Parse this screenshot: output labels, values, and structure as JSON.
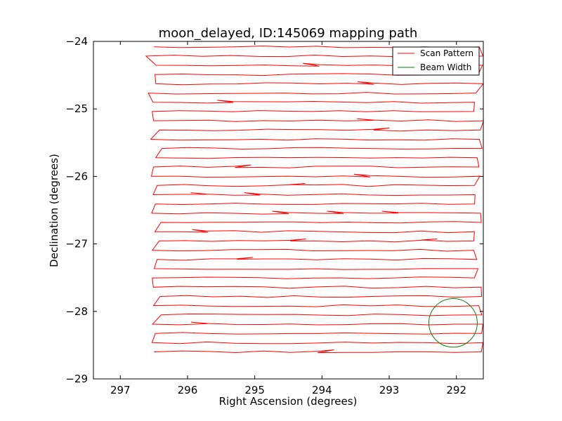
{
  "chart_data": {
    "type": "line",
    "title": "moon_delayed, ID:145069 mapping path",
    "xlabel": "Right Ascension (degrees)",
    "ylabel": "Declination (degrees)",
    "xlim": [
      297.4,
      291.6
    ],
    "ylim": [
      -29,
      -24
    ],
    "xticks": [
      297,
      296,
      295,
      294,
      293,
      292
    ],
    "yticks": [
      -24,
      -25,
      -26,
      -27,
      -28,
      -29
    ],
    "xtick_labels": [
      "297",
      "296",
      "295",
      "294",
      "293",
      "292"
    ],
    "ytick_labels": [
      "−24",
      "−25",
      "−26",
      "−27",
      "−28",
      "−29"
    ],
    "legend": {
      "placement": "top-right",
      "entries": [
        {
          "label": "Scan Pattern",
          "color": "#ff0000"
        },
        {
          "label": "Beam Width",
          "color": "#008000"
        }
      ]
    },
    "series": [
      {
        "name": "Scan Pattern",
        "color": "#ff0000",
        "ra_left": 296.5,
        "ra_right": 291.7,
        "dec_start": -24.08,
        "dec_end": -28.6,
        "rows": 17
      },
      {
        "name": "Beam Width",
        "type": "circle",
        "color": "#008000",
        "center_ra": 292.05,
        "center_dec": -28.17,
        "radius_deg": 0.36
      }
    ]
  }
}
